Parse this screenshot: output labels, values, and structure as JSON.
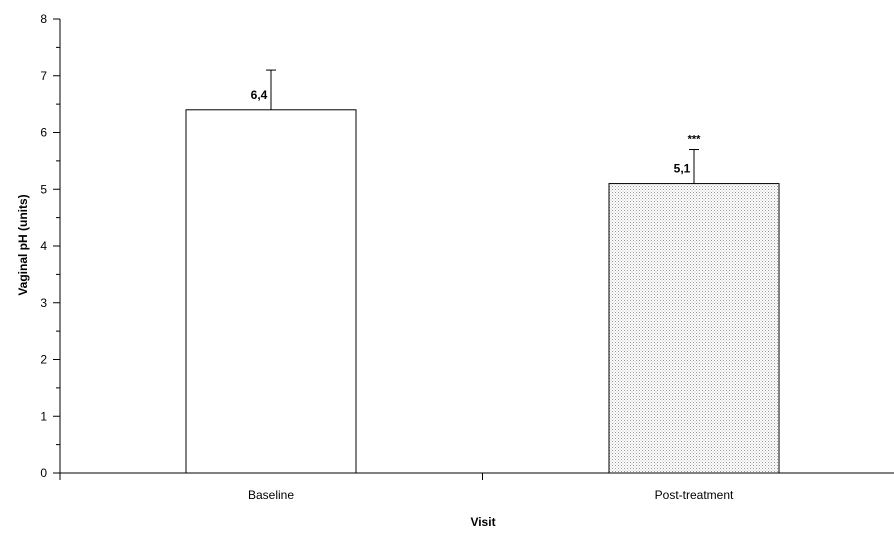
{
  "chart_data": {
    "type": "bar",
    "categories": [
      "Baseline",
      "Post-treatment"
    ],
    "values": [
      6.4,
      5.1
    ],
    "error_upper": [
      0.7,
      0.6
    ],
    "data_labels": [
      "6,4",
      "5,1"
    ],
    "annotations": [
      "",
      "***"
    ],
    "bar_fills": [
      "#ffffff",
      "dotted-grey"
    ],
    "xlabel": "Visit",
    "ylabel": "Vaginal pH (units)",
    "ylim": [
      0,
      8
    ],
    "yticks": [
      "0",
      "1",
      "2",
      "3",
      "4",
      "5",
      "6",
      "7",
      "8"
    ],
    "grid": false,
    "legend": "none",
    "background": "#ffffff"
  }
}
